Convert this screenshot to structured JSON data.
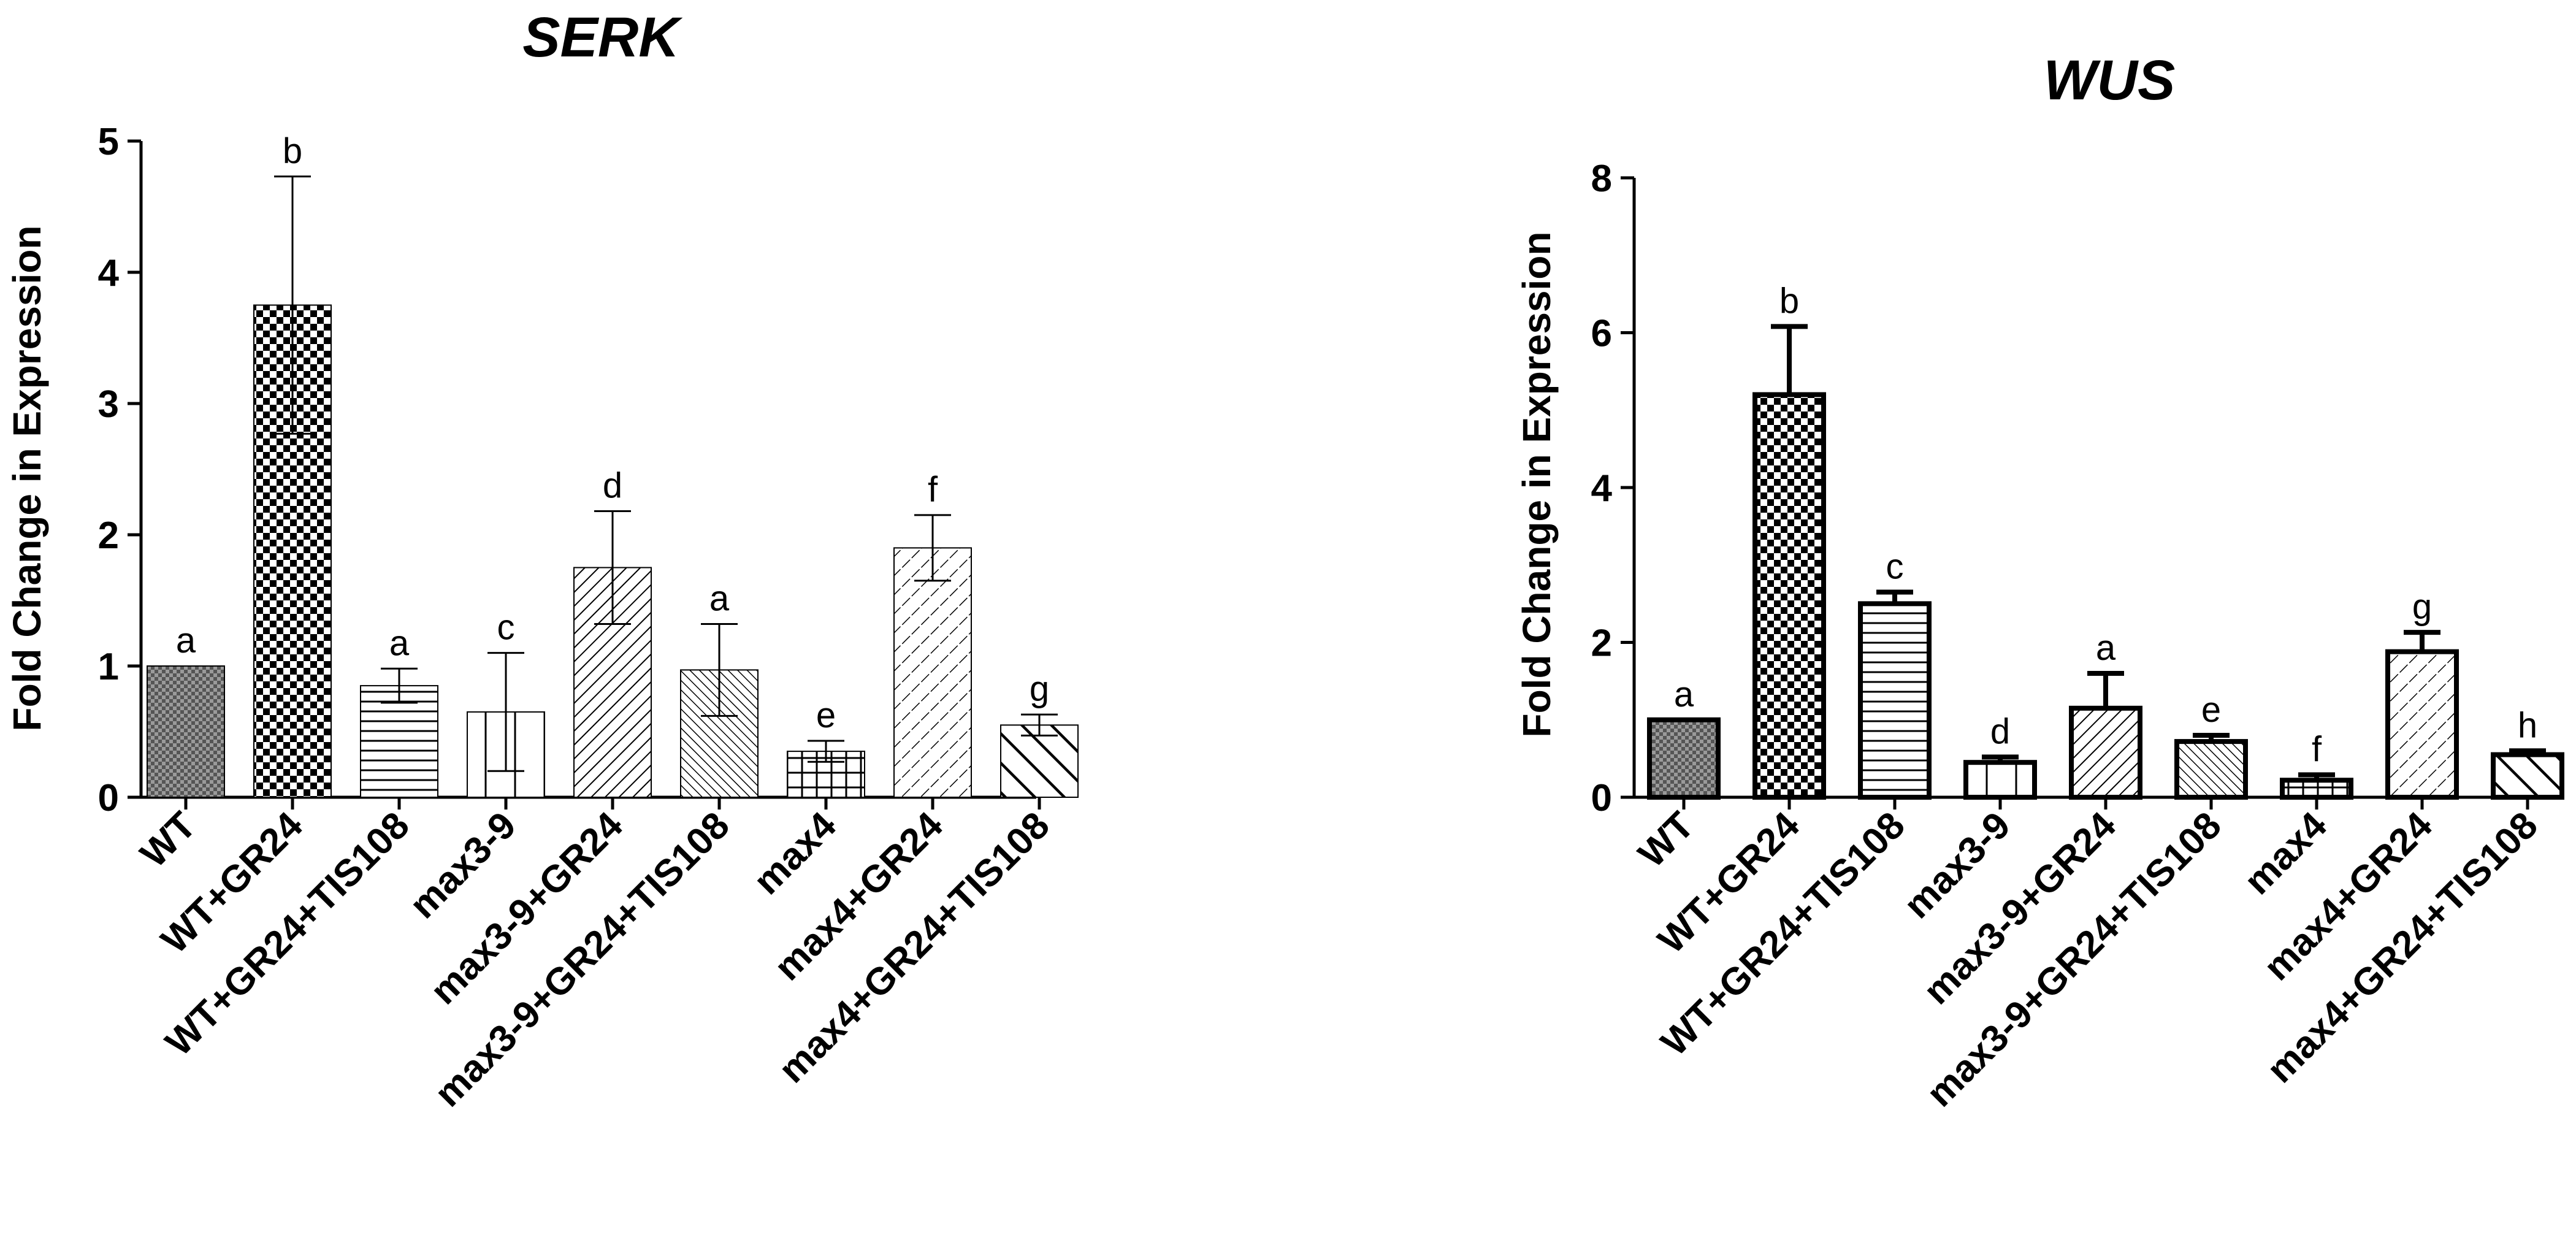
{
  "chart_data": [
    {
      "type": "bar",
      "title": "SERK",
      "xlabel": "",
      "ylabel": "Fold Change in Expression",
      "ylim": [
        0,
        5
      ],
      "yticks": [
        "0",
        "1",
        "2",
        "3",
        "4",
        "5"
      ],
      "grid": false,
      "legend": "none",
      "categories": [
        "WT",
        "WT+GR24",
        "WT+GR24+TIS108",
        "max3-9",
        "max3-9+GR24",
        "max3-9+GR24+TIS108",
        "max4",
        "max4+GR24",
        "max4+GR24+TIS108"
      ],
      "values": [
        1.0,
        3.75,
        0.85,
        0.65,
        1.75,
        0.97,
        0.35,
        1.9,
        0.55
      ],
      "error_upper": [
        0.0,
        0.98,
        0.13,
        0.45,
        0.43,
        0.35,
        0.08,
        0.25,
        0.08
      ],
      "error_lower": [
        0.0,
        0.98,
        0.13,
        0.45,
        0.43,
        0.35,
        0.08,
        0.25,
        0.08
      ],
      "annotations": [
        "a",
        "b",
        "a",
        "c",
        "d",
        "a",
        "e",
        "f",
        "g"
      ],
      "patterns": [
        "crosshatch",
        "checker",
        "horizontal",
        "vertical",
        "diagonal",
        "diagonal-dense",
        "grid",
        "diagonal-wide",
        "diagonal-thick"
      ]
    },
    {
      "type": "bar",
      "title": "WUS",
      "xlabel": "",
      "ylabel": "Fold Change in Expression",
      "ylim": [
        0,
        8
      ],
      "yticks": [
        "0",
        "2",
        "4",
        "6",
        "8"
      ],
      "grid": false,
      "legend": "none",
      "categories": [
        "WT",
        "WT+GR24",
        "WT+GR24+TIS108",
        "max3-9",
        "max3-9+GR24",
        "max3-9+GR24+TIS108",
        "max4",
        "max4+GR24",
        "max4+GR24+TIS108"
      ],
      "values": [
        1.0,
        5.2,
        2.5,
        0.45,
        1.15,
        0.72,
        0.22,
        1.88,
        0.55
      ],
      "error_upper": [
        0.0,
        0.88,
        0.15,
        0.07,
        0.45,
        0.08,
        0.07,
        0.25,
        0.05
      ],
      "error_lower": [
        0.0,
        0.0,
        0.0,
        0.0,
        0.0,
        0.0,
        0.0,
        0.0,
        0.0
      ],
      "annotations": [
        "a",
        "b",
        "c",
        "d",
        "a",
        "e",
        "f",
        "g",
        "h"
      ],
      "patterns": [
        "crosshatch",
        "checker",
        "horizontal",
        "vertical",
        "diagonal",
        "diagonal-dense",
        "grid",
        "diagonal-wide",
        "diagonal-thick"
      ]
    }
  ]
}
